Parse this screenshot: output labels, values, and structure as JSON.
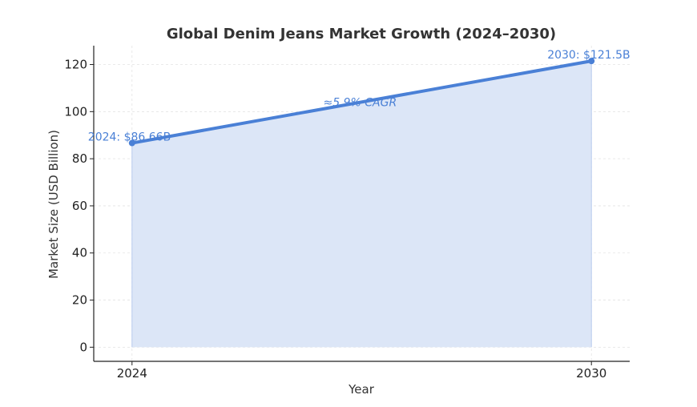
{
  "chart_data": {
    "type": "area",
    "title": "Global Denim Jeans Market Growth (2024–2030)",
    "xlabel": "Year",
    "ylabel": "Market Size (USD Billion)",
    "x": [
      2024,
      2030
    ],
    "x_tick_labels": [
      "2024",
      "2030"
    ],
    "y_ticks": [
      0,
      20,
      40,
      60,
      80,
      100,
      120
    ],
    "y_tick_labels": [
      "0",
      "20",
      "40",
      "60",
      "80",
      "100",
      "120"
    ],
    "xlim": [
      2023.5,
      2030.5
    ],
    "ylim": [
      -6,
      128
    ],
    "grid": true,
    "series": [
      {
        "values": [
          86.66,
          121.5
        ]
      }
    ],
    "annotations": [
      {
        "text": "2024: $86.66B",
        "x": 2024,
        "y": 86.66
      },
      {
        "text": "2030: $121.5B",
        "x": 2030,
        "y": 121.5
      },
      {
        "text": "≈5.9% CAGR",
        "x": 2027,
        "y": 104
      }
    ],
    "colors": {
      "line": "#4a80d6",
      "fill": "#dce6f7",
      "annotation": "#4a80d6",
      "grid": "#e3e3e3",
      "axis": "#222222"
    }
  }
}
